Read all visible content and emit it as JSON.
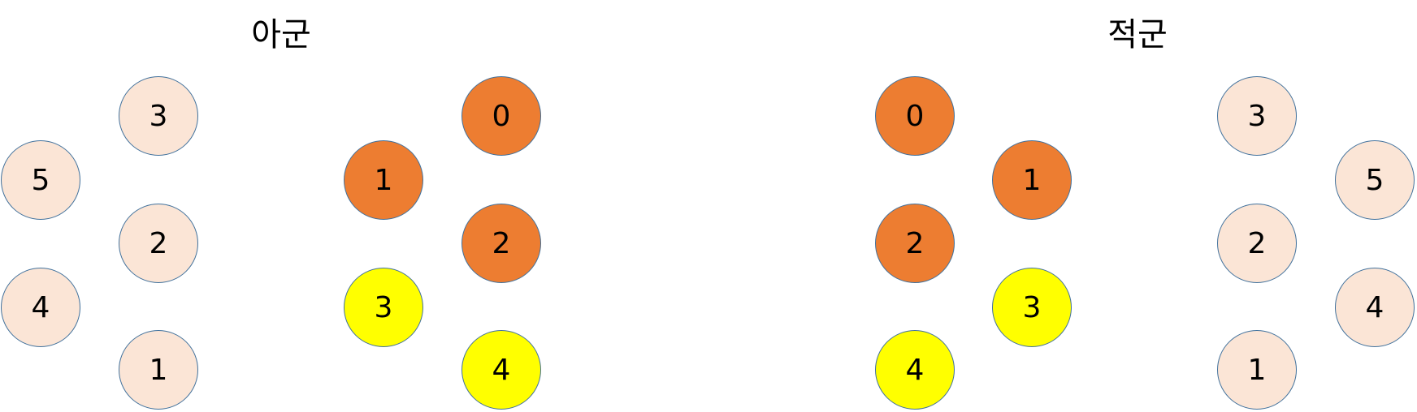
{
  "ally": {
    "title": "아군",
    "reserve": [
      {
        "label": "3",
        "status": "pale"
      },
      {
        "label": "5",
        "status": "pale"
      },
      {
        "label": "2",
        "status": "pale"
      },
      {
        "label": "4",
        "status": "pale"
      },
      {
        "label": "1",
        "status": "pale"
      }
    ],
    "formation": [
      {
        "label": "0",
        "status": "orange"
      },
      {
        "label": "1",
        "status": "orange"
      },
      {
        "label": "2",
        "status": "orange"
      },
      {
        "label": "3",
        "status": "yellow"
      },
      {
        "label": "4",
        "status": "yellow"
      }
    ]
  },
  "enemy": {
    "title": "적군",
    "formation": [
      {
        "label": "0",
        "status": "orange"
      },
      {
        "label": "1",
        "status": "orange"
      },
      {
        "label": "2",
        "status": "orange"
      },
      {
        "label": "3",
        "status": "yellow"
      },
      {
        "label": "4",
        "status": "yellow"
      }
    ],
    "reserve": [
      {
        "label": "3",
        "status": "pale"
      },
      {
        "label": "5",
        "status": "pale"
      },
      {
        "label": "2",
        "status": "pale"
      },
      {
        "label": "4",
        "status": "pale"
      },
      {
        "label": "1",
        "status": "pale"
      }
    ]
  },
  "colors": {
    "pale": "#FBE5D6",
    "orange": "#ED7D31",
    "yellow": "#FFFF00",
    "outline": "#41719C"
  }
}
